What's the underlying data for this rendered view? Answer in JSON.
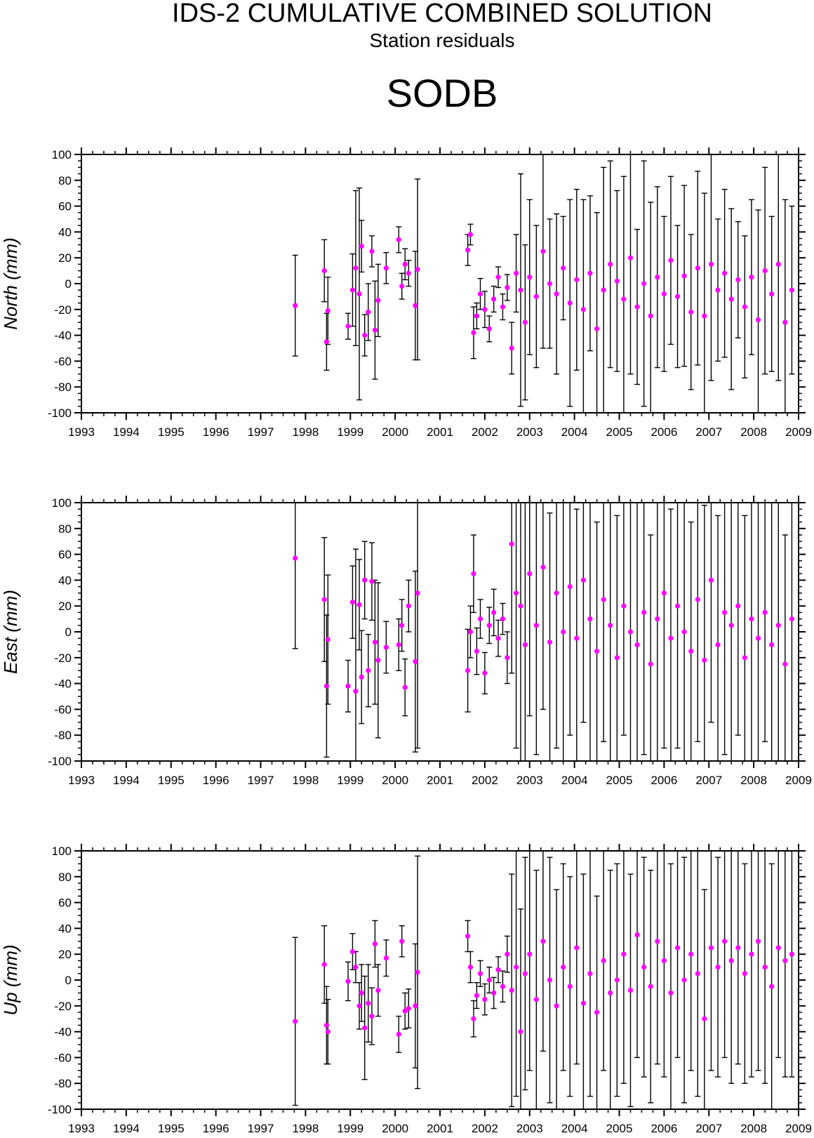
{
  "header": {
    "title": "IDS-2 CUMULATIVE COMBINED SOLUTION",
    "subtitle": "Station residuals",
    "station": "SODB"
  },
  "colors": {
    "point": "#ff00ff",
    "errorbar": "#000000",
    "axis": "#000000"
  },
  "chart_data": [
    {
      "type": "scatter",
      "title": "",
      "ylabel": "North (mm)",
      "xlabel": "",
      "xlim": [
        1993,
        2009
      ],
      "ylim": [
        -100,
        100
      ],
      "xticks": [
        "1993",
        "1994",
        "1995",
        "1996",
        "1997",
        "1998",
        "1999",
        "2000",
        "2001",
        "2002",
        "2003",
        "2004",
        "2005",
        "2006",
        "2007",
        "2008",
        "2009"
      ],
      "yticks": [
        "-100",
        "-80",
        "-60",
        "-40",
        "-20",
        "0",
        "20",
        "40",
        "60",
        "80",
        "100"
      ],
      "grid": false,
      "series": [
        {
          "error_bars": true,
          "x": [
            1997.77,
            1998.42,
            1998.47,
            1998.5,
            1998.95,
            1999.05,
            1999.12,
            1999.2,
            1999.25,
            1999.32,
            1999.4,
            1999.48,
            1999.55,
            1999.62,
            1999.8,
            2000.08,
            2000.15,
            2000.22,
            2000.3,
            2000.45,
            2000.5,
            2001.62,
            2001.68,
            2001.75,
            2001.82,
            2001.9,
            2002.0,
            2002.1,
            2002.2,
            2002.3,
            2002.4,
            2002.5,
            2002.6,
            2002.7,
            2002.8,
            2002.9,
            2003.0,
            2003.15,
            2003.3,
            2003.45,
            2003.6,
            2003.75,
            2003.9,
            2004.05,
            2004.2,
            2004.35,
            2004.5,
            2004.65,
            2004.8,
            2004.95,
            2005.1,
            2005.25,
            2005.4,
            2005.55,
            2005.7,
            2005.85,
            2006.0,
            2006.15,
            2006.3,
            2006.45,
            2006.6,
            2006.75,
            2006.9,
            2007.05,
            2007.2,
            2007.35,
            2007.5,
            2007.65,
            2007.8,
            2007.95,
            2008.1,
            2008.25,
            2008.4,
            2008.55,
            2008.7,
            2008.85
          ],
          "y": [
            -17,
            10,
            -45,
            -21,
            -33,
            -5,
            12,
            -8,
            29,
            -40,
            -22,
            25,
            -36,
            -13,
            12,
            34,
            -2,
            15,
            8,
            -17,
            11,
            26,
            38,
            -38,
            -25,
            -8,
            -20,
            -35,
            -12,
            5,
            -18,
            -3,
            -50,
            8,
            -5,
            -30,
            5,
            -10,
            25,
            0,
            -8,
            12,
            -15,
            3,
            -20,
            8,
            -35,
            -5,
            15,
            2,
            -12,
            20,
            -18,
            0,
            -25,
            5,
            -8,
            18,
            -10,
            6,
            -22,
            12,
            -25,
            15,
            -5,
            8,
            -12,
            3,
            -18,
            5,
            -28,
            10,
            -8,
            15,
            -30,
            -5
          ],
          "err": [
            39,
            24,
            22,
            26,
            10,
            28,
            60,
            82,
            20,
            16,
            22,
            12,
            38,
            28,
            12,
            10,
            10,
            12,
            10,
            42,
            70,
            12,
            8,
            20,
            10,
            12,
            14,
            10,
            10,
            8,
            10,
            10,
            20,
            30,
            90,
            60,
            60,
            55,
            75,
            50,
            62,
            40,
            80,
            70,
            85,
            60,
            90,
            95,
            80,
            70,
            95,
            90,
            60,
            95,
            88,
            70,
            60,
            65,
            55,
            70,
            60,
            75,
            95,
            90,
            55,
            65,
            70,
            45,
            55,
            60,
            85,
            80,
            60,
            90,
            95,
            65
          ]
        }
      ]
    },
    {
      "type": "scatter",
      "title": "",
      "ylabel": "East (mm)",
      "xlabel": "",
      "xlim": [
        1993,
        2009
      ],
      "ylim": [
        -100,
        100
      ],
      "xticks": [
        "1993",
        "1994",
        "1995",
        "1996",
        "1997",
        "1998",
        "1999",
        "2000",
        "2001",
        "2002",
        "2003",
        "2004",
        "2005",
        "2006",
        "2007",
        "2008",
        "2009"
      ],
      "yticks": [
        "-100",
        "-80",
        "-60",
        "-40",
        "-20",
        "0",
        "20",
        "40",
        "60",
        "80",
        "100"
      ],
      "grid": false,
      "series": [
        {
          "error_bars": true,
          "x": [
            1997.77,
            1998.42,
            1998.47,
            1998.5,
            1998.95,
            1999.05,
            1999.12,
            1999.2,
            1999.25,
            1999.32,
            1999.4,
            1999.48,
            1999.55,
            1999.62,
            1999.8,
            2000.08,
            2000.15,
            2000.22,
            2000.3,
            2000.45,
            2000.5,
            2001.62,
            2001.68,
            2001.75,
            2001.82,
            2001.9,
            2002.0,
            2002.1,
            2002.2,
            2002.3,
            2002.4,
            2002.5,
            2002.6,
            2002.7,
            2002.8,
            2002.9,
            2003.0,
            2003.15,
            2003.3,
            2003.45,
            2003.6,
            2003.75,
            2003.9,
            2004.05,
            2004.2,
            2004.35,
            2004.5,
            2004.65,
            2004.8,
            2004.95,
            2005.1,
            2005.25,
            2005.4,
            2005.55,
            2005.7,
            2005.85,
            2006.0,
            2006.15,
            2006.3,
            2006.45,
            2006.6,
            2006.75,
            2006.9,
            2007.05,
            2007.2,
            2007.35,
            2007.5,
            2007.65,
            2007.8,
            2007.95,
            2008.1,
            2008.25,
            2008.4,
            2008.55,
            2008.7,
            2008.85
          ],
          "y": [
            57,
            25,
            -42,
            -6,
            -42,
            23,
            -46,
            21,
            -35,
            40,
            -30,
            39,
            -8,
            -22,
            -12,
            -10,
            5,
            -43,
            20,
            -23,
            30,
            -30,
            0,
            45,
            -15,
            10,
            -32,
            5,
            15,
            -5,
            10,
            -20,
            68,
            30,
            20,
            -10,
            45,
            5,
            50,
            -8,
            30,
            0,
            35,
            -5,
            40,
            10,
            -15,
            25,
            5,
            -20,
            20,
            0,
            -10,
            15,
            -25,
            10,
            30,
            -5,
            20,
            0,
            -15,
            25,
            -22,
            40,
            -10,
            15,
            5,
            20,
            -20,
            10,
            -5,
            15,
            -10,
            5,
            -25,
            10
          ],
          "err": [
            70,
            48,
            55,
            50,
            20,
            28,
            110,
            35,
            36,
            30,
            28,
            30,
            48,
            60,
            20,
            20,
            20,
            22,
            20,
            70,
            120,
            32,
            20,
            30,
            18,
            15,
            16,
            14,
            18,
            14,
            12,
            20,
            100,
            120,
            120,
            120,
            110,
            100,
            110,
            100,
            120,
            110,
            115,
            100,
            110,
            120,
            100,
            110,
            120,
            110,
            100,
            110,
            120,
            110,
            100,
            110,
            120,
            100,
            110,
            120,
            100,
            110,
            120,
            110,
            100,
            110,
            120,
            100,
            110,
            120,
            110,
            100,
            110,
            120,
            100,
            110
          ]
        }
      ]
    },
    {
      "type": "scatter",
      "title": "",
      "ylabel": "Up (mm)",
      "xlabel": "",
      "xlim": [
        1993,
        2009
      ],
      "ylim": [
        -100,
        100
      ],
      "xticks": [
        "1993",
        "1994",
        "1995",
        "1996",
        "1997",
        "1998",
        "1999",
        "2000",
        "2001",
        "2002",
        "2003",
        "2004",
        "2005",
        "2006",
        "2007",
        "2008",
        "2009"
      ],
      "yticks": [
        "-100",
        "-80",
        "-60",
        "-40",
        "-20",
        "0",
        "20",
        "40",
        "60",
        "80",
        "100"
      ],
      "grid": false,
      "series": [
        {
          "error_bars": true,
          "x": [
            1997.77,
            1998.42,
            1998.47,
            1998.5,
            1998.95,
            1999.05,
            1999.12,
            1999.2,
            1999.25,
            1999.32,
            1999.4,
            1999.48,
            1999.55,
            1999.62,
            1999.8,
            2000.08,
            2000.15,
            2000.22,
            2000.3,
            2000.45,
            2000.5,
            2001.62,
            2001.68,
            2001.75,
            2001.82,
            2001.9,
            2002.0,
            2002.1,
            2002.2,
            2002.3,
            2002.4,
            2002.5,
            2002.6,
            2002.7,
            2002.8,
            2002.9,
            2003.0,
            2003.15,
            2003.3,
            2003.45,
            2003.6,
            2003.75,
            2003.9,
            2004.05,
            2004.2,
            2004.35,
            2004.5,
            2004.65,
            2004.8,
            2004.95,
            2005.1,
            2005.25,
            2005.4,
            2005.55,
            2005.7,
            2005.85,
            2006.0,
            2006.15,
            2006.3,
            2006.45,
            2006.6,
            2006.75,
            2006.9,
            2007.05,
            2007.2,
            2007.35,
            2007.5,
            2007.65,
            2007.8,
            2007.95,
            2008.1,
            2008.25,
            2008.4,
            2008.55,
            2008.7,
            2008.85
          ],
          "y": [
            -32,
            12,
            -35,
            -40,
            -1,
            22,
            10,
            -20,
            -10,
            -37,
            -18,
            -28,
            28,
            -8,
            17,
            -42,
            30,
            -24,
            -22,
            -20,
            6,
            34,
            10,
            -30,
            -12,
            5,
            -15,
            0,
            -10,
            8,
            -5,
            20,
            -8,
            10,
            -40,
            5,
            20,
            -15,
            30,
            0,
            -20,
            10,
            -5,
            25,
            -18,
            5,
            -25,
            15,
            -10,
            0,
            20,
            -8,
            35,
            10,
            -5,
            30,
            15,
            -10,
            25,
            0,
            20,
            5,
            -30,
            25,
            10,
            30,
            15,
            25,
            5,
            20,
            30,
            10,
            -5,
            25,
            15,
            20
          ],
          "err": [
            65,
            30,
            30,
            25,
            15,
            14,
            12,
            18,
            22,
            40,
            30,
            22,
            18,
            20,
            14,
            14,
            12,
            14,
            15,
            48,
            90,
            12,
            12,
            14,
            10,
            10,
            12,
            10,
            12,
            10,
            12,
            14,
            90,
            100,
            95,
            90,
            90,
            100,
            85,
            95,
            90,
            80,
            85,
            90,
            100,
            95,
            90,
            85,
            95,
            90,
            100,
            90,
            95,
            85,
            90,
            95,
            90,
            100,
            85,
            95,
            90,
            95,
            100,
            95,
            85,
            90,
            95,
            90,
            85,
            95,
            100,
            90,
            95,
            85,
            90,
            95
          ]
        }
      ]
    }
  ]
}
